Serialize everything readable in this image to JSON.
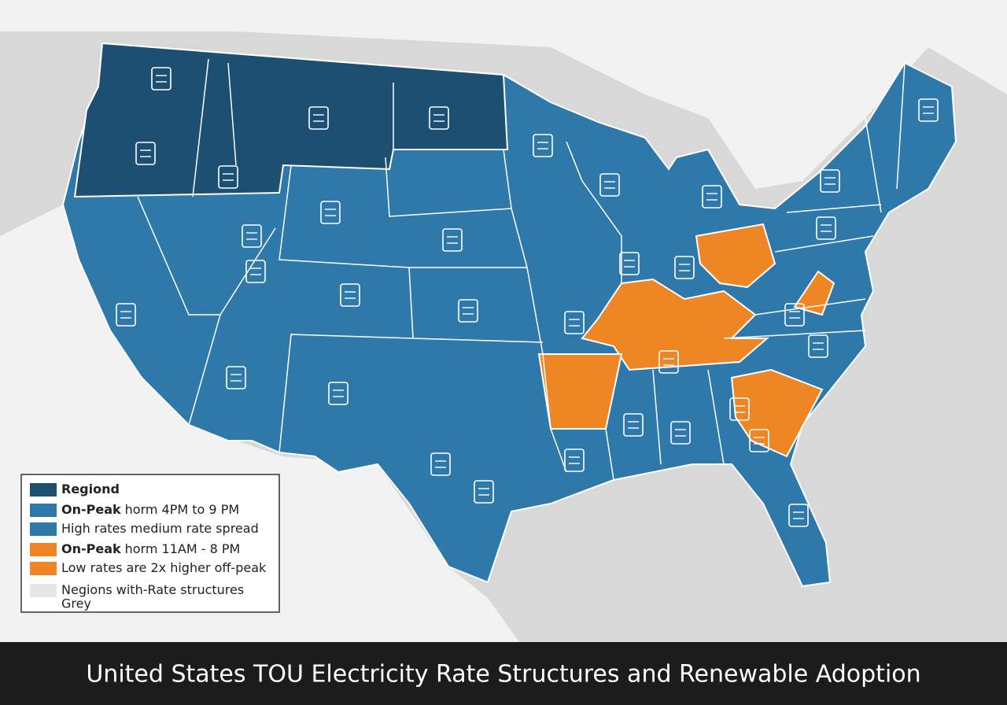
{
  "title": "United States TOU Electricity Rate Structures and Renewable Adoption",
  "legend": {
    "items": [
      {
        "color": "#1d4f73",
        "bold": "Regiond"
      },
      {
        "color": "#2f78aa",
        "bold": "On-Peak",
        "text": "horm 4PM to 9 PM"
      },
      {
        "color": "#2f78aa",
        "text": "High rates medium rate spread"
      },
      {
        "color": "#ef8626",
        "bold": "On-Peak",
        "text": "horm 11AM - 8 PM"
      },
      {
        "color": "#ef8626",
        "text": "Low rates are 2x higher off-peak"
      },
      {
        "color": "#e6e6e6",
        "text": "Negions with-Rate structures",
        "text2": "Grey"
      }
    ]
  }
}
